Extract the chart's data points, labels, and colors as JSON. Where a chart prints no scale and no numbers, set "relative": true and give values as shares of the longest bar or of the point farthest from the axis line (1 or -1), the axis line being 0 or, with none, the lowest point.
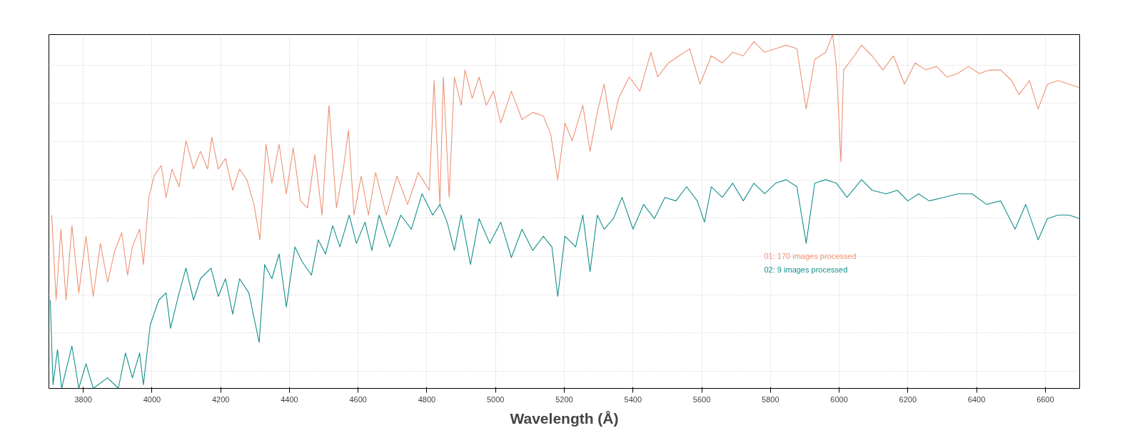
{
  "chart_data": {
    "type": "line",
    "xlabel": "Wavelength (Å)",
    "relative": true,
    "xlim": [
      3700,
      6700
    ],
    "xticks": [
      3800,
      4000,
      4200,
      4400,
      4600,
      4800,
      5000,
      5200,
      5400,
      5600,
      5800,
      6000,
      6200,
      6400,
      6600
    ],
    "grid": true,
    "legend": "bottom right",
    "marker": "none",
    "line_style": "solid",
    "series": [
      {
        "name": "01: 170 images processed",
        "color": "#ee9275",
        "x": [
          3708,
          3721,
          3735,
          3750,
          3767,
          3787,
          3808,
          3829,
          3850,
          3871,
          3892,
          3912,
          3929,
          3943,
          3964,
          3975,
          3991,
          4006,
          4027,
          4041,
          4058,
          4079,
          4099,
          4121,
          4141,
          4162,
          4174,
          4193,
          4214,
          4235,
          4255,
          4276,
          4297,
          4314,
          4332,
          4349,
          4370,
          4391,
          4411,
          4432,
          4453,
          4474,
          4495,
          4515,
          4537,
          4557,
          4572,
          4588,
          4609,
          4630,
          4651,
          4682,
          4713,
          4744,
          4775,
          4807,
          4821,
          4838,
          4848,
          4865,
          4880,
          4900,
          4911,
          4932,
          4952,
          4973,
          4994,
          5015,
          5046,
          5077,
          5108,
          5139,
          5160,
          5181,
          5202,
          5223,
          5254,
          5275,
          5296,
          5316,
          5337,
          5358,
          5389,
          5420,
          5452,
          5472,
          5503,
          5534,
          5565,
          5595,
          5628,
          5660,
          5690,
          5721,
          5752,
          5783,
          5815,
          5846,
          5877,
          5904,
          5929,
          5961,
          5981,
          5992,
          6005,
          6013,
          6044,
          6065,
          6096,
          6127,
          6158,
          6190,
          6221,
          6252,
          6283,
          6314,
          6345,
          6376,
          6408,
          6439,
          6470,
          6502,
          6523,
          6554,
          6579,
          6606,
          6637,
          6669,
          6700
        ],
        "values": [
          0.49,
          0.25,
          0.45,
          0.25,
          0.46,
          0.27,
          0.43,
          0.26,
          0.41,
          0.3,
          0.39,
          0.44,
          0.32,
          0.4,
          0.45,
          0.35,
          0.54,
          0.6,
          0.63,
          0.54,
          0.62,
          0.57,
          0.7,
          0.62,
          0.67,
          0.62,
          0.71,
          0.62,
          0.65,
          0.56,
          0.62,
          0.59,
          0.52,
          0.42,
          0.69,
          0.58,
          0.69,
          0.55,
          0.68,
          0.53,
          0.51,
          0.66,
          0.49,
          0.8,
          0.51,
          0.62,
          0.73,
          0.49,
          0.6,
          0.49,
          0.61,
          0.49,
          0.6,
          0.52,
          0.61,
          0.56,
          0.87,
          0.52,
          0.88,
          0.54,
          0.88,
          0.8,
          0.9,
          0.82,
          0.88,
          0.8,
          0.84,
          0.75,
          0.84,
          0.76,
          0.78,
          0.77,
          0.72,
          0.59,
          0.75,
          0.7,
          0.8,
          0.67,
          0.78,
          0.86,
          0.73,
          0.82,
          0.88,
          0.84,
          0.95,
          0.88,
          0.92,
          0.94,
          0.96,
          0.86,
          0.94,
          0.92,
          0.95,
          0.94,
          0.98,
          0.95,
          0.96,
          0.97,
          0.96,
          0.79,
          0.93,
          0.95,
          1.0,
          0.91,
          0.64,
          0.9,
          0.94,
          0.97,
          0.94,
          0.9,
          0.94,
          0.86,
          0.92,
          0.9,
          0.91,
          0.88,
          0.89,
          0.91,
          0.89,
          0.9,
          0.9,
          0.87,
          0.83,
          0.87,
          0.79,
          0.86,
          0.87,
          0.86,
          0.85
        ]
      },
      {
        "name": "02: 9 images processed",
        "color": "#138f8c",
        "x": [
          3704,
          3712,
          3725,
          3737,
          3767,
          3787,
          3808,
          3829,
          3871,
          3902,
          3923,
          3943,
          3964,
          3975,
          3995,
          4020,
          4041,
          4054,
          4079,
          4099,
          4121,
          4141,
          4172,
          4193,
          4214,
          4235,
          4255,
          4282,
          4312,
          4328,
          4349,
          4370,
          4391,
          4416,
          4436,
          4464,
          4484,
          4505,
          4526,
          4547,
          4574,
          4595,
          4620,
          4640,
          4661,
          4692,
          4724,
          4755,
          4786,
          4817,
          4838,
          4859,
          4880,
          4900,
          4927,
          4952,
          4983,
          5015,
          5046,
          5077,
          5108,
          5139,
          5164,
          5181,
          5202,
          5233,
          5254,
          5275,
          5296,
          5316,
          5343,
          5368,
          5400,
          5431,
          5462,
          5493,
          5525,
          5556,
          5587,
          5608,
          5628,
          5660,
          5690,
          5721,
          5752,
          5783,
          5815,
          5846,
          5877,
          5904,
          5929,
          5961,
          5992,
          6023,
          6065,
          6096,
          6137,
          6169,
          6200,
          6231,
          6262,
          6304,
          6345,
          6387,
          6429,
          6470,
          6512,
          6543,
          6579,
          6606,
          6637,
          6669,
          6700
        ],
        "values": [
          0.25,
          0.01,
          0.11,
          0.0,
          0.12,
          0.0,
          0.07,
          0.0,
          0.03,
          0,
          0.1,
          0.03,
          0.1,
          0.01,
          0.18,
          0.25,
          0.27,
          0.17,
          0.27,
          0.34,
          0.25,
          0.31,
          0.34,
          0.26,
          0.31,
          0.21,
          0.31,
          0.27,
          0.13,
          0.35,
          0.31,
          0.38,
          0.23,
          0.4,
          0.36,
          0.32,
          0.42,
          0.38,
          0.46,
          0.4,
          0.49,
          0.41,
          0.47,
          0.39,
          0.49,
          0.4,
          0.49,
          0.45,
          0.55,
          0.49,
          0.52,
          0.47,
          0.39,
          0.49,
          0.35,
          0.48,
          0.41,
          0.47,
          0.37,
          0.45,
          0.39,
          0.43,
          0.4,
          0.26,
          0.43,
          0.4,
          0.49,
          0.33,
          0.49,
          0.45,
          0.48,
          0.54,
          0.45,
          0.52,
          0.48,
          0.54,
          0.53,
          0.57,
          0.53,
          0.47,
          0.57,
          0.54,
          0.58,
          0.53,
          0.58,
          0.55,
          0.58,
          0.59,
          0.57,
          0.41,
          0.58,
          0.59,
          0.58,
          0.54,
          0.59,
          0.56,
          0.55,
          0.56,
          0.53,
          0.55,
          0.53,
          0.54,
          0.55,
          0.55,
          0.52,
          0.53,
          0.45,
          0.52,
          0.42,
          0.48,
          0.49,
          0.49,
          0.48
        ]
      }
    ]
  }
}
